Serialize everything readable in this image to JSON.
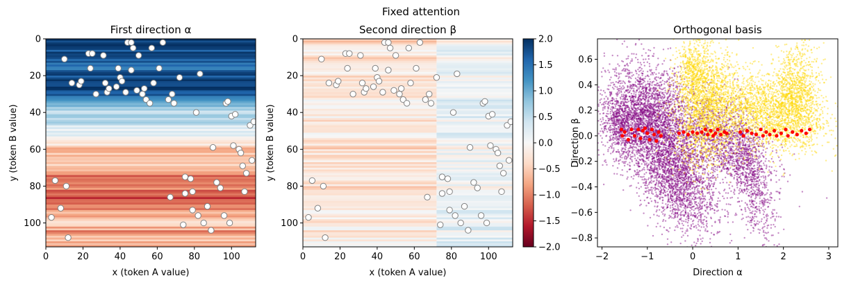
{
  "figure": {
    "suptitle": "Fixed attention"
  },
  "colors": {
    "blue_dark": "#053061",
    "blue": "#2166ac",
    "blue_mid": "#4393c3",
    "blue_light": "#92c5de",
    "blue_pale": "#d1e5f0",
    "white": "#f7f7f7",
    "red_pale": "#fddbc7",
    "red_light": "#f4a582",
    "red_mid": "#d6604d",
    "red": "#b2182b",
    "red_dark": "#67001f",
    "purple": "#800080",
    "gold": "#FFD700",
    "red_marker": "#FF0000",
    "marker_edge": "#808080"
  },
  "chart_data": [
    {
      "type": "heatmap",
      "title": "First direction α",
      "xlabel": "x (token A value)",
      "ylabel": "y (token B value)",
      "xlim": [
        0,
        113
      ],
      "ylim": [
        113,
        0
      ],
      "xticks": [
        0,
        20,
        40,
        60,
        80,
        100
      ],
      "yticks": [
        0,
        20,
        40,
        60,
        80,
        100
      ],
      "colormap": "RdBu",
      "clim": [
        -2,
        2
      ],
      "row_profile": {
        "y": [
          0,
          4,
          8,
          12,
          16,
          20,
          24,
          28,
          32,
          36,
          40,
          44,
          48,
          52,
          56,
          60,
          64,
          68,
          72,
          76,
          80,
          84,
          88,
          92,
          96,
          100,
          104,
          108,
          112
        ],
        "value": [
          1.9,
          1.8,
          1.7,
          1.6,
          1.5,
          1.8,
          1.9,
          1.7,
          1.5,
          0.7,
          0.5,
          0.6,
          0.3,
          0.2,
          -0.3,
          -0.6,
          -0.4,
          -0.5,
          -0.9,
          -1.1,
          -1.0,
          -1.3,
          -1.2,
          -1.0,
          -0.7,
          -0.4,
          -0.9,
          -0.6,
          -0.8
        ]
      },
      "points": [
        [
          3,
          97
        ],
        [
          5,
          77
        ],
        [
          8,
          92
        ],
        [
          10,
          11
        ],
        [
          11,
          80
        ],
        [
          12,
          108
        ],
        [
          14,
          24
        ],
        [
          18,
          25
        ],
        [
          19,
          23
        ],
        [
          23,
          8
        ],
        [
          24,
          16
        ],
        [
          25,
          8
        ],
        [
          27,
          30
        ],
        [
          31,
          9
        ],
        [
          32,
          24
        ],
        [
          33,
          29
        ],
        [
          34,
          27
        ],
        [
          38,
          26
        ],
        [
          39,
          16
        ],
        [
          40,
          21
        ],
        [
          41,
          23
        ],
        [
          43,
          29
        ],
        [
          44,
          2
        ],
        [
          46,
          2
        ],
        [
          46,
          17
        ],
        [
          47,
          5
        ],
        [
          49,
          28
        ],
        [
          50,
          9
        ],
        [
          52,
          30
        ],
        [
          53,
          27
        ],
        [
          54,
          33
        ],
        [
          56,
          35
        ],
        [
          57,
          5
        ],
        [
          58,
          24
        ],
        [
          61,
          16
        ],
        [
          63,
          2
        ],
        [
          66,
          33
        ],
        [
          67,
          86
        ],
        [
          68,
          30
        ],
        [
          69,
          35
        ],
        [
          72,
          21
        ],
        [
          74,
          101
        ],
        [
          75,
          75
        ],
        [
          75,
          84
        ],
        [
          78,
          76
        ],
        [
          79,
          93
        ],
        [
          79,
          83
        ],
        [
          81,
          40
        ],
        [
          82,
          96
        ],
        [
          83,
          19
        ],
        [
          85,
          100
        ],
        [
          87,
          91
        ],
        [
          89,
          104
        ],
        [
          90,
          59
        ],
        [
          92,
          78
        ],
        [
          94,
          81
        ],
        [
          96,
          96
        ],
        [
          97,
          35
        ],
        [
          98,
          34
        ],
        [
          99,
          100
        ],
        [
          100,
          42
        ],
        [
          101,
          58
        ],
        [
          102,
          41
        ],
        [
          104,
          60
        ],
        [
          105,
          62
        ],
        [
          106,
          69
        ],
        [
          107,
          83
        ],
        [
          108,
          73
        ],
        [
          110,
          47
        ],
        [
          111,
          66
        ],
        [
          112,
          45
        ]
      ]
    },
    {
      "type": "heatmap",
      "title": "Second direction β",
      "xlabel": "x (token A value)",
      "ylabel": "y (token B value)",
      "xlim": [
        0,
        113
      ],
      "ylim": [
        113,
        0
      ],
      "xticks": [
        0,
        20,
        40,
        60,
        80,
        100
      ],
      "yticks": [
        0,
        20,
        40,
        60,
        80,
        100
      ],
      "colormap": "RdBu",
      "clim": [
        -2,
        2
      ],
      "colorbar_ticks": [
        2.0,
        1.5,
        1.0,
        0.5,
        0.0,
        -0.5,
        -1.0,
        -1.5,
        -2.0
      ],
      "colorbar_tick_labels": [
        "2.0",
        "1.5",
        "1.0",
        "0.5",
        "0.0",
        "−0.5",
        "−1.0",
        "−1.5",
        "−2.0"
      ],
      "row_profile": {
        "y": [
          0,
          4,
          8,
          12,
          16,
          20,
          24,
          28,
          32,
          36,
          40,
          44,
          48,
          52,
          56,
          60,
          64,
          68,
          72,
          76,
          80,
          84,
          88,
          92,
          96,
          100,
          104,
          108,
          112
        ],
        "value": [
          -0.3,
          -0.2,
          -0.15,
          -0.2,
          -0.1,
          -0.2,
          -0.15,
          -0.1,
          -0.1,
          -0.05,
          0.0,
          -0.1,
          0.05,
          0.0,
          -0.25,
          -0.3,
          -0.2,
          -0.25,
          -0.15,
          -0.1,
          -0.2,
          -0.15,
          -0.1,
          -0.1,
          -0.15,
          -0.05,
          -0.1,
          -0.05,
          -0.1
        ]
      },
      "column_shift": {
        "x_split": 72,
        "left": -0.1,
        "right": 0.25
      },
      "points": [
        [
          3,
          97
        ],
        [
          5,
          77
        ],
        [
          8,
          92
        ],
        [
          10,
          11
        ],
        [
          11,
          80
        ],
        [
          12,
          108
        ],
        [
          14,
          24
        ],
        [
          18,
          25
        ],
        [
          19,
          23
        ],
        [
          23,
          8
        ],
        [
          24,
          16
        ],
        [
          25,
          8
        ],
        [
          27,
          30
        ],
        [
          31,
          9
        ],
        [
          32,
          24
        ],
        [
          33,
          29
        ],
        [
          34,
          27
        ],
        [
          38,
          26
        ],
        [
          39,
          16
        ],
        [
          40,
          21
        ],
        [
          41,
          23
        ],
        [
          43,
          29
        ],
        [
          44,
          2
        ],
        [
          46,
          2
        ],
        [
          46,
          17
        ],
        [
          47,
          5
        ],
        [
          49,
          28
        ],
        [
          50,
          9
        ],
        [
          52,
          30
        ],
        [
          53,
          27
        ],
        [
          54,
          33
        ],
        [
          56,
          35
        ],
        [
          57,
          5
        ],
        [
          58,
          24
        ],
        [
          61,
          16
        ],
        [
          63,
          2
        ],
        [
          66,
          33
        ],
        [
          67,
          86
        ],
        [
          68,
          30
        ],
        [
          69,
          35
        ],
        [
          72,
          21
        ],
        [
          74,
          101
        ],
        [
          75,
          75
        ],
        [
          75,
          84
        ],
        [
          78,
          76
        ],
        [
          79,
          93
        ],
        [
          79,
          83
        ],
        [
          81,
          40
        ],
        [
          82,
          96
        ],
        [
          83,
          19
        ],
        [
          85,
          100
        ],
        [
          87,
          91
        ],
        [
          89,
          104
        ],
        [
          90,
          59
        ],
        [
          92,
          78
        ],
        [
          94,
          81
        ],
        [
          96,
          96
        ],
        [
          97,
          35
        ],
        [
          98,
          34
        ],
        [
          99,
          100
        ],
        [
          100,
          42
        ],
        [
          101,
          58
        ],
        [
          102,
          41
        ],
        [
          104,
          60
        ],
        [
          105,
          62
        ],
        [
          106,
          69
        ],
        [
          107,
          83
        ],
        [
          108,
          73
        ],
        [
          110,
          47
        ],
        [
          111,
          66
        ],
        [
          112,
          45
        ]
      ]
    },
    {
      "type": "scatter",
      "title": "Orthogonal basis",
      "xlabel": "Direction α",
      "ylabel": "Direction β",
      "xlim": [
        -2.1,
        3.2
      ],
      "ylim": [
        -0.87,
        0.76
      ],
      "xticks": [
        -2,
        -1,
        0,
        1,
        2,
        3
      ],
      "xtick_labels": [
        "−2",
        "−1",
        "0",
        "1",
        "2",
        "3"
      ],
      "yticks": [
        0.6,
        0.4,
        0.2,
        0.0,
        -0.2,
        -0.4,
        -0.6,
        -0.8
      ],
      "ytick_labels": [
        "0.6",
        "0.4",
        "0.2",
        "0.0",
        "−0.2",
        "−0.4",
        "−0.6",
        "−0.8"
      ],
      "clusters": [
        {
          "color": "purple",
          "count": 2400,
          "center": [
            -1.0,
            0.15
          ],
          "spread": [
            0.45,
            0.2
          ],
          "tilt": -0.05
        },
        {
          "color": "purple",
          "count": 2200,
          "center": [
            -0.4,
            -0.3
          ],
          "spread": [
            0.45,
            0.2
          ],
          "tilt": -0.25
        },
        {
          "color": "purple",
          "count": 1400,
          "center": [
            0.6,
            -0.05
          ],
          "spread": [
            0.55,
            0.17
          ],
          "tilt": -0.12
        },
        {
          "color": "purple",
          "count": 700,
          "center": [
            1.3,
            -0.35
          ],
          "spread": [
            0.25,
            0.2
          ],
          "tilt": -0.6
        },
        {
          "color": "purple",
          "count": 500,
          "center": [
            -1.6,
            0.1
          ],
          "spread": [
            0.2,
            0.12
          ],
          "tilt": 0.0
        },
        {
          "color": "gold",
          "count": 1600,
          "center": [
            0.3,
            0.2
          ],
          "spread": [
            0.35,
            0.22
          ],
          "tilt": 0.1
        },
        {
          "color": "gold",
          "count": 2000,
          "center": [
            1.6,
            0.18
          ],
          "spread": [
            0.65,
            0.15
          ],
          "tilt": -0.05
        },
        {
          "color": "gold",
          "count": 900,
          "center": [
            2.3,
            0.35
          ],
          "spread": [
            0.25,
            0.18
          ],
          "tilt": 0.0
        },
        {
          "color": "gold",
          "count": 500,
          "center": [
            0.0,
            0.5
          ],
          "spread": [
            0.2,
            0.12
          ],
          "tilt": 0.0
        }
      ],
      "red_points": [
        [
          -1.57,
          0.05
        ],
        [
          -1.55,
          0.0
        ],
        [
          -1.5,
          0.03
        ],
        [
          -1.42,
          -0.03
        ],
        [
          -1.35,
          0.05
        ],
        [
          -1.28,
          0.0
        ],
        [
          -1.2,
          0.05
        ],
        [
          -1.15,
          -0.02
        ],
        [
          -1.1,
          0.04
        ],
        [
          -1.05,
          0.06
        ],
        [
          -1.0,
          0.02
        ],
        [
          -0.95,
          -0.03
        ],
        [
          -0.9,
          0.05
        ],
        [
          -0.85,
          0.01
        ],
        [
          -0.8,
          -0.04
        ],
        [
          -0.75,
          0.03
        ],
        [
          -0.7,
          0.0
        ],
        [
          -0.3,
          0.02
        ],
        [
          -0.2,
          0.03
        ],
        [
          -0.1,
          0.01
        ],
        [
          0.0,
          0.03
        ],
        [
          0.1,
          0.02
        ],
        [
          0.2,
          0.03
        ],
        [
          0.28,
          0.05
        ],
        [
          0.33,
          0.01
        ],
        [
          0.4,
          0.04
        ],
        [
          0.45,
          0.0
        ],
        [
          0.5,
          0.02
        ],
        [
          0.55,
          0.05
        ],
        [
          0.62,
          0.01
        ],
        [
          0.7,
          0.03
        ],
        [
          0.75,
          0.02
        ],
        [
          1.05,
          0.03
        ],
        [
          1.12,
          0.0
        ],
        [
          1.2,
          0.04
        ],
        [
          1.3,
          0.02
        ],
        [
          1.4,
          0.01
        ],
        [
          1.5,
          0.05
        ],
        [
          1.55,
          0.0
        ],
        [
          1.62,
          0.03
        ],
        [
          1.7,
          0.01
        ],
        [
          1.8,
          0.04
        ],
        [
          1.85,
          0.0
        ],
        [
          1.95,
          0.02
        ],
        [
          2.05,
          0.05
        ],
        [
          2.1,
          0.0
        ],
        [
          2.2,
          0.03
        ],
        [
          2.3,
          0.01
        ],
        [
          2.4,
          0.04
        ],
        [
          2.5,
          0.02
        ],
        [
          2.58,
          0.05
        ]
      ]
    }
  ]
}
